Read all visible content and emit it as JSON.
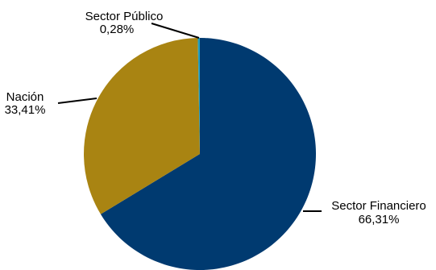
{
  "chart_data": {
    "type": "pie",
    "title": "",
    "slices": [
      {
        "label": "Sector Financiero",
        "value": 66.31,
        "display": "66,31%",
        "color": "#003a70"
      },
      {
        "label": "Nación",
        "value": 33.41,
        "display": "33,41%",
        "color": "#a98412"
      },
      {
        "label": "Sector Público",
        "value": 0.28,
        "display": "0,28%",
        "color": "#1f9fc4"
      }
    ],
    "legend": "none",
    "start_angle": "12 o'clock",
    "direction": "clockwise"
  }
}
